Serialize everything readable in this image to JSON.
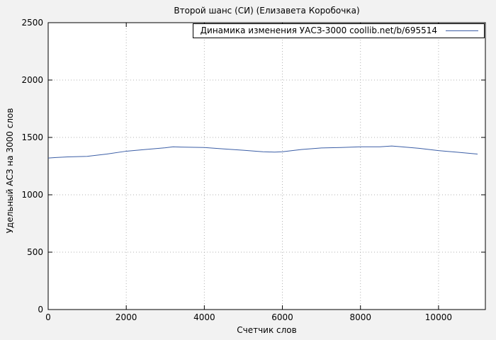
{
  "page": {
    "background": "#f2f2f2",
    "plot_background": "#ffffff"
  },
  "chart_data": {
    "type": "line",
    "title": "Второй шанс (СИ) (Елизавета Коробочка)",
    "legend": "Динамика изменения УАСЗ-3000 coollib.net/b/695514",
    "xlabel": "Счетчик слов",
    "ylabel": "Удельный АСЗ на 3000 слов",
    "xlim": [
      0,
      11200
    ],
    "ylim": [
      0,
      2500
    ],
    "xticks": [
      0,
      2000,
      4000,
      6000,
      8000,
      10000
    ],
    "yticks": [
      0,
      500,
      1000,
      1500,
      2000,
      2500
    ],
    "grid": true,
    "legend_position": "top-right",
    "line_color": "#3b5ea6",
    "x": [
      0,
      200,
      500,
      1000,
      1500,
      2000,
      2500,
      3000,
      3200,
      3500,
      4000,
      4500,
      5000,
      5500,
      5800,
      6000,
      6500,
      7000,
      7500,
      8000,
      8500,
      8800,
      9000,
      9500,
      10000,
      10500,
      11000
    ],
    "y": [
      1320,
      1325,
      1330,
      1335,
      1355,
      1380,
      1395,
      1410,
      1418,
      1415,
      1412,
      1400,
      1388,
      1375,
      1372,
      1375,
      1395,
      1408,
      1412,
      1418,
      1418,
      1425,
      1420,
      1405,
      1385,
      1370,
      1355
    ]
  }
}
